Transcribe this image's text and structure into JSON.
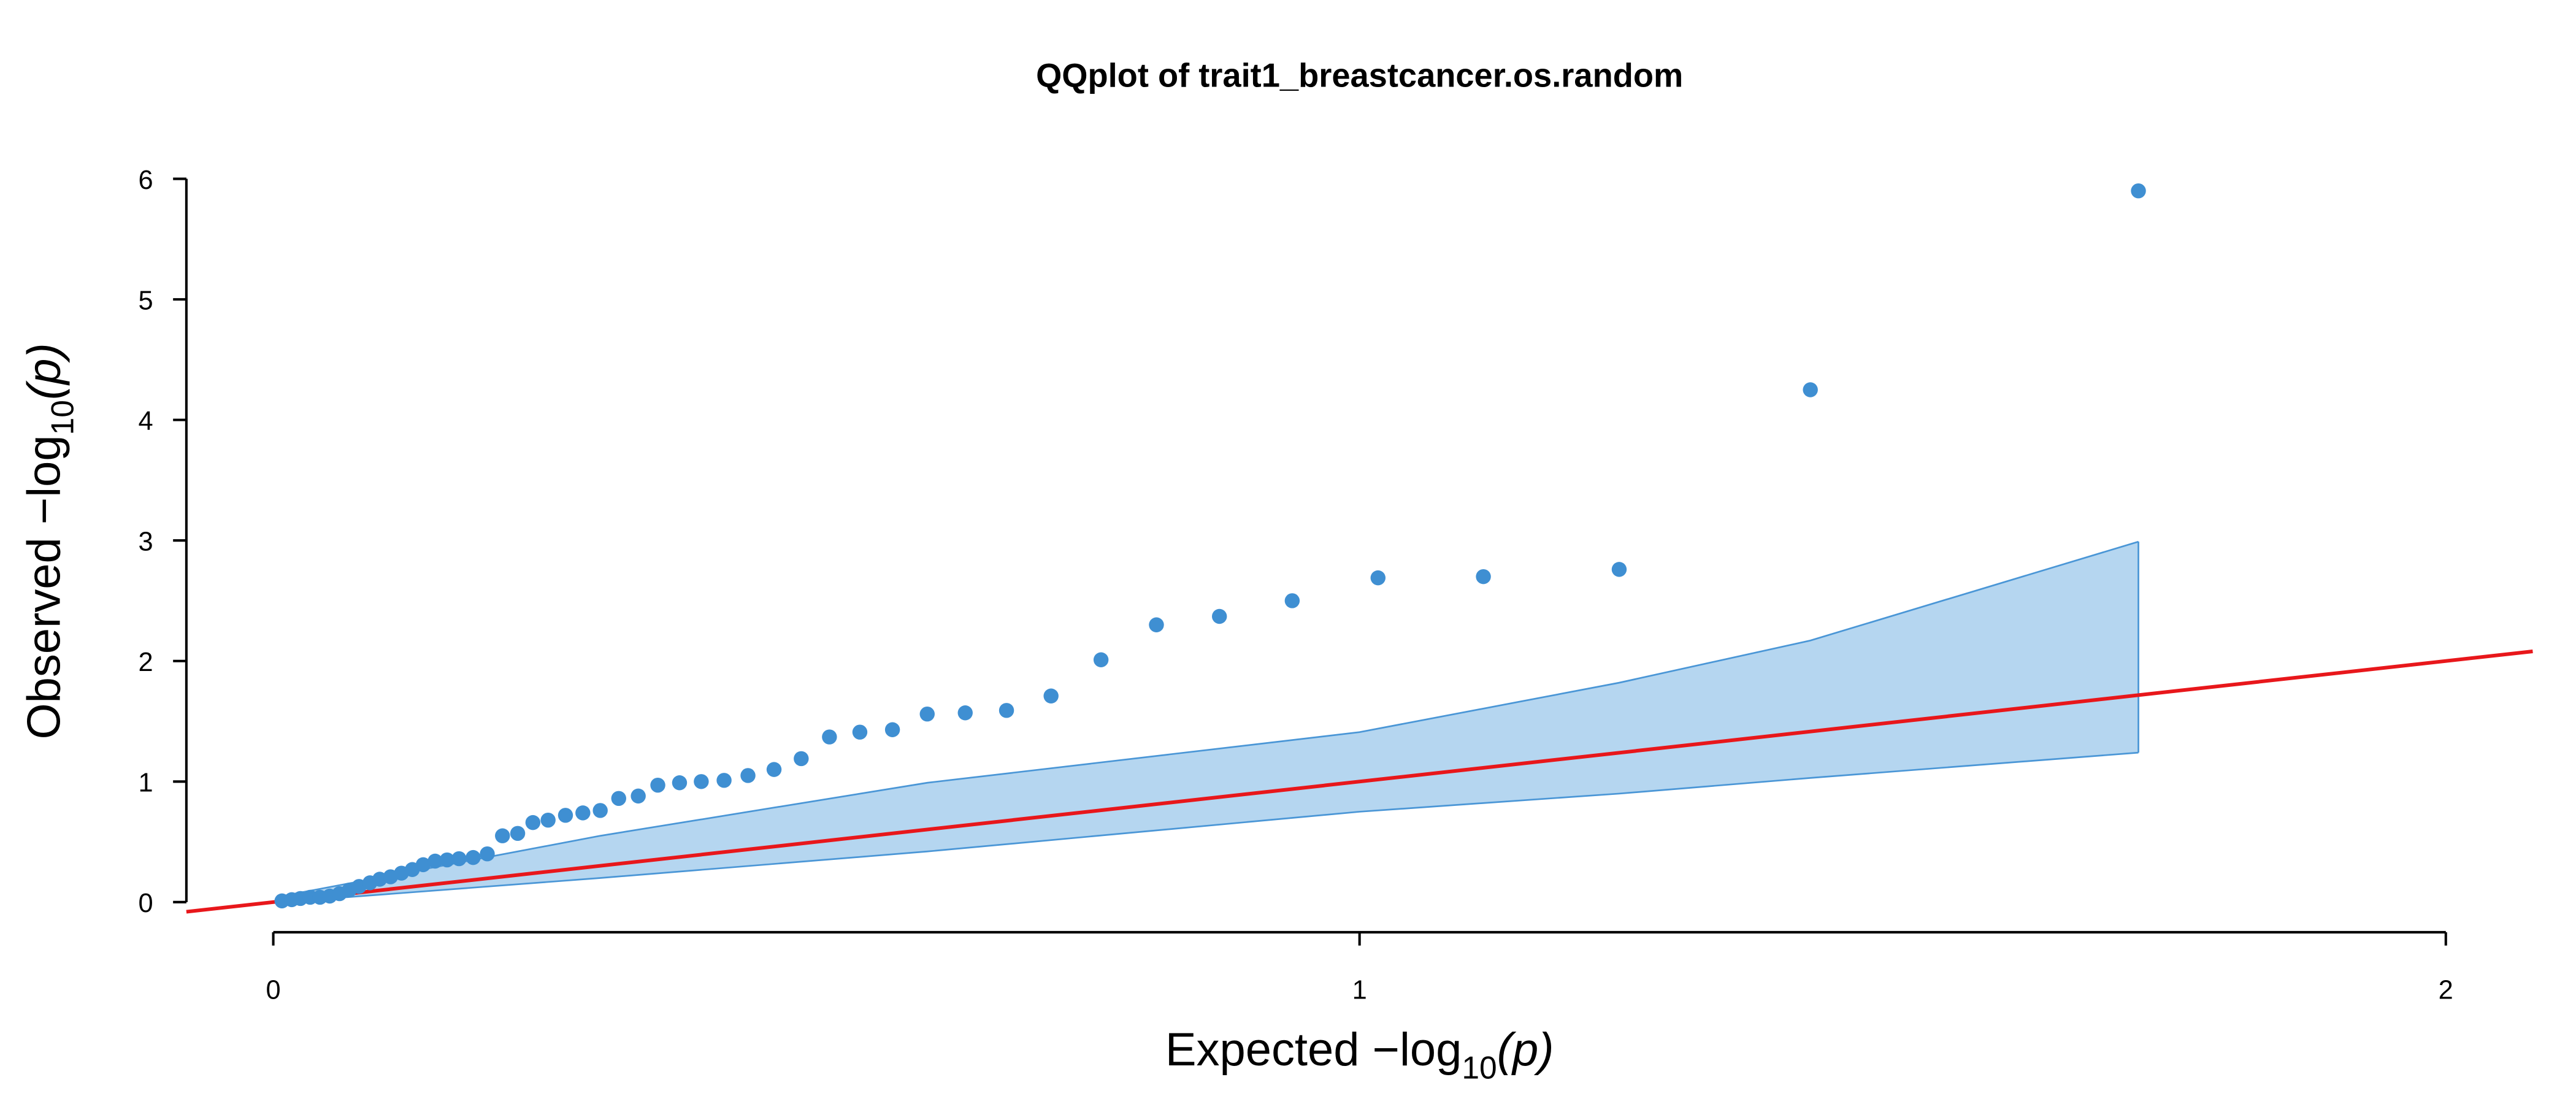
{
  "chart_data": {
    "type": "qq",
    "title": "QQplot of trait1_breastcancer.os.random",
    "x_label": [
      "Expected  −log",
      "10",
      "(p)"
    ],
    "y_label": [
      "Observed  −log",
      "10",
      "(p)"
    ],
    "xlim": [
      -0.08,
      2.08
    ],
    "xticks": [
      0,
      1,
      2
    ],
    "ylim": [
      -0.25,
      6.1
    ],
    "yticks": [
      0,
      1,
      2,
      3,
      4,
      5,
      6
    ],
    "point_color": "#3f8fd2",
    "band_fill": "#b5d6f0",
    "band_stroke": "#4a96d6",
    "line_color": "#e8171b",
    "x": [
      0.008,
      0.017,
      0.025,
      0.034,
      0.043,
      0.052,
      0.061,
      0.07,
      0.079,
      0.089,
      0.098,
      0.108,
      0.118,
      0.128,
      0.138,
      0.149,
      0.16,
      0.171,
      0.184,
      0.197,
      0.211,
      0.225,
      0.239,
      0.253,
      0.269,
      0.285,
      0.301,
      0.318,
      0.336,
      0.354,
      0.374,
      0.394,
      0.415,
      0.437,
      0.461,
      0.486,
      0.512,
      0.54,
      0.57,
      0.602,
      0.637,
      0.675,
      0.716,
      0.762,
      0.813,
      0.871,
      0.938,
      1.017,
      1.114,
      1.239,
      1.415,
      1.717
    ],
    "values": [
      0.01,
      0.02,
      0.03,
      0.04,
      0.04,
      0.05,
      0.07,
      0.1,
      0.13,
      0.16,
      0.19,
      0.21,
      0.24,
      0.27,
      0.31,
      0.34,
      0.35,
      0.36,
      0.37,
      0.4,
      0.55,
      0.57,
      0.66,
      0.68,
      0.72,
      0.74,
      0.76,
      0.86,
      0.88,
      0.97,
      0.99,
      1.0,
      1.01,
      1.05,
      1.1,
      1.19,
      1.37,
      1.41,
      1.43,
      1.56,
      1.57,
      1.59,
      1.71,
      2.01,
      2.3,
      2.37,
      2.5,
      2.69,
      2.7,
      2.76,
      4.25,
      5.9
    ],
    "band_x": [
      0.008,
      0.301,
      0.602,
      1.0,
      1.239,
      1.415,
      1.717
    ],
    "band_upper": [
      0.05,
      0.55,
      0.99,
      1.41,
      1.82,
      2.17,
      2.99
    ],
    "band_lower": [
      0.0,
      0.2,
      0.42,
      0.75,
      0.9,
      1.03,
      1.24
    ]
  }
}
